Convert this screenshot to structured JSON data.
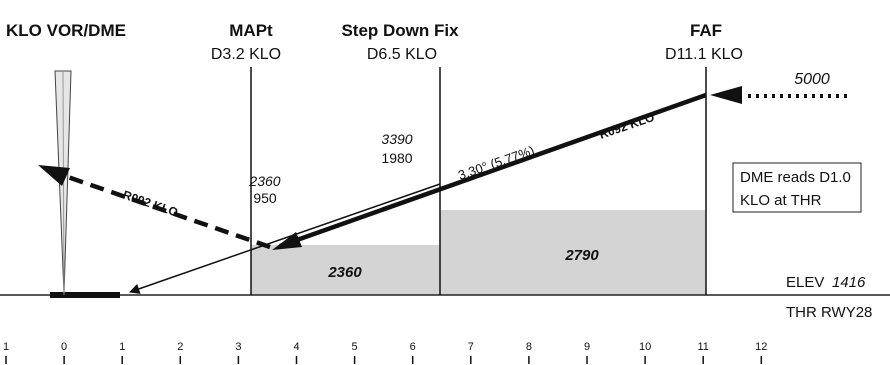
{
  "colors": {
    "ink": "#111111",
    "shade": "#d4d4d4",
    "stroke": "#222222"
  },
  "headers": {
    "station": "KLO VOR/DME",
    "mapt_title": "MAPt",
    "mapt_dist": "D3.2 KLO",
    "sdf_title": "Step Down Fix",
    "sdf_dist": "D6.5 KLO",
    "faf_title": "FAF",
    "faf_dist": "D11.1 KLO"
  },
  "altitudes": {
    "faf_alt": "5000",
    "sdf_alt_msl": "3390",
    "sdf_alt_hat": "1980",
    "mapt_alt_msl": "2360",
    "mapt_alt_hat": "950"
  },
  "paths": {
    "glide_angle": "3.30° (5.77%)",
    "inbound_radial": "R092 KLO",
    "missed_radial": "R092 KLO"
  },
  "obstacles": {
    "box1": "2360",
    "box2": "2790"
  },
  "notes": {
    "dme_note_line1": "DME reads D1.0",
    "dme_note_line2": "KLO at THR",
    "elev_label": "ELEV",
    "elev_value": "1416",
    "threshold": "THR RWY28"
  },
  "scale": {
    "ticks": [
      "1",
      "0",
      "1",
      "2",
      "3",
      "4",
      "5",
      "6",
      "7",
      "8",
      "9",
      "10",
      "11",
      "12"
    ]
  }
}
